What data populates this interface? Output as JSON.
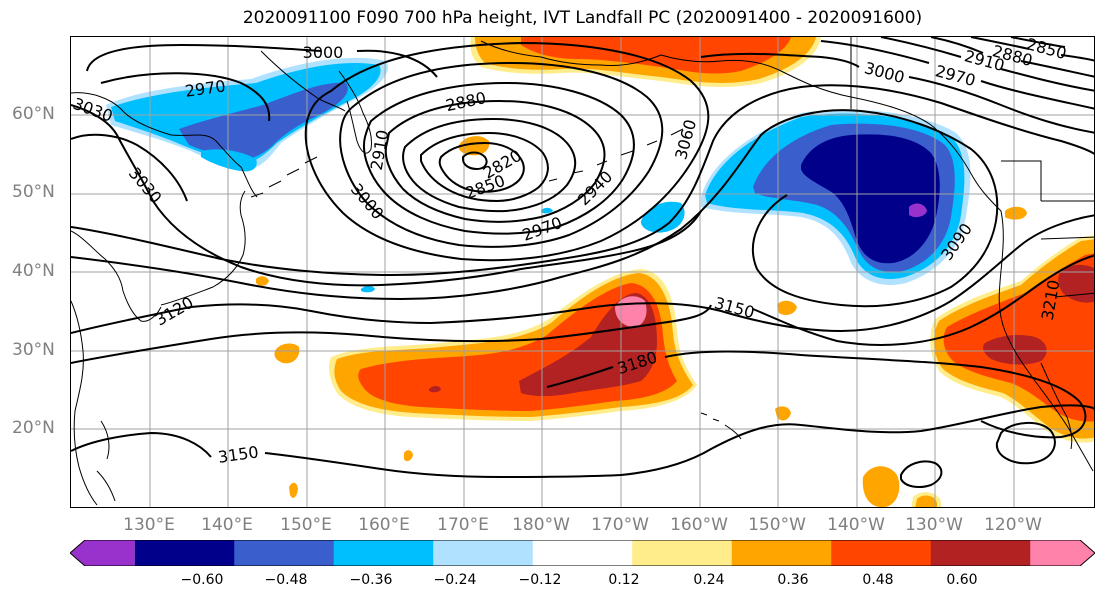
{
  "title": "2020091100 F090 700 hPa height, IVT Landfall PC (2020091400 - 2020091600)",
  "latitude_labels": [
    "60°N",
    "50°N",
    "40°N",
    "30°N",
    "20°N"
  ],
  "longitude_labels": [
    "130°E",
    "140°E",
    "150°E",
    "160°E",
    "170°E",
    "180°W",
    "170°W",
    "160°W",
    "150°W",
    "140°W",
    "130°W",
    "120°W"
  ],
  "contour_labels": [
    "3000",
    "2970",
    "3030",
    "3030",
    "2880",
    "2910",
    "2820",
    "2850",
    "3000",
    "2940",
    "2970",
    "3060",
    "3000",
    "2970",
    "2910",
    "2880",
    "2850",
    "3090",
    "3150",
    "3120",
    "3180",
    "3210",
    "3150"
  ],
  "colorbar": {
    "tick_labels": [
      "−0.60",
      "−0.48",
      "−0.36",
      "−0.24",
      "−0.12",
      "0.12",
      "0.24",
      "0.36",
      "0.48",
      "0.60"
    ],
    "colors": [
      "#9932cc",
      "#00008b",
      "#3a5fcd",
      "#00bfff",
      "#b0e2ff",
      "#ffffff",
      "#ffec8b",
      "#ffa500",
      "#ff4500",
      "#b22222",
      "#ff82ab"
    ]
  },
  "colors": {
    "land_outline": "#000000",
    "gridline": "#a0a0a0",
    "contour": "#000000",
    "axis_label": "#808080"
  }
}
